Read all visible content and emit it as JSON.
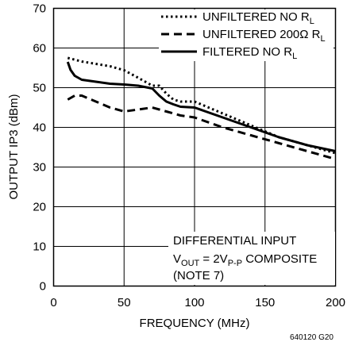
{
  "chart_data": {
    "type": "line",
    "xlabel": "FREQUENCY (MHz)",
    "ylabel": "OUTPUT IP3 (dBm)",
    "xlim": [
      0,
      200
    ],
    "ylim": [
      0,
      70
    ],
    "xticks": [
      "0",
      "50",
      "100",
      "150",
      "200"
    ],
    "yticks": [
      "0",
      "10",
      "20",
      "30",
      "40",
      "50",
      "60",
      "70"
    ],
    "grid": true,
    "legend_position": "top-right",
    "series": [
      {
        "name": "UNFILTERED NO RL",
        "style": "dotted",
        "x": [
          10,
          20,
          30,
          40,
          50,
          60,
          70,
          75,
          80,
          85,
          90,
          100,
          120,
          140,
          160,
          180,
          200
        ],
        "y": [
          57.5,
          56.6,
          56,
          55.4,
          54.4,
          52.5,
          50.5,
          50.5,
          48.5,
          47,
          46.5,
          46.5,
          43.5,
          40.5,
          37.5,
          35.5,
          33.5
        ]
      },
      {
        "name": "UNFILTERED 200Ω RL",
        "style": "dashed",
        "x": [
          10,
          15,
          20,
          30,
          40,
          50,
          60,
          70,
          80,
          90,
          100,
          120,
          140,
          160,
          180,
          200
        ],
        "y": [
          47,
          48,
          48,
          46.5,
          45,
          44,
          44.5,
          45,
          44,
          43,
          42.5,
          40,
          38,
          36,
          34,
          32
        ]
      },
      {
        "name": "FILTERED NO RL",
        "style": "solid",
        "x": [
          10,
          12,
          15,
          20,
          30,
          40,
          50,
          60,
          70,
          75,
          80,
          85,
          90,
          100,
          120,
          140,
          160,
          180,
          200
        ],
        "y": [
          56.5,
          54.5,
          53,
          52,
          51.5,
          51,
          50.8,
          50.5,
          49.8,
          48,
          46.5,
          45.8,
          45.2,
          45,
          42.5,
          40,
          37.5,
          35.5,
          34
        ]
      }
    ],
    "annotations": [
      "DIFFERENTIAL INPUT",
      "VOUT = 2VP-P COMPOSITE",
      "(NOTE 7)"
    ],
    "figure_code": "640120 G20"
  },
  "legend": {
    "l1": {
      "main": "UNFILTERED NO R",
      "sub": "L"
    },
    "l2": {
      "main": "UNFILTERED 200Ω R",
      "sub": "L"
    },
    "l3": {
      "main": "FILTERED NO R",
      "sub": "L"
    }
  },
  "note": {
    "line1": "DIFFERENTIAL INPUT",
    "v": "V",
    "out_sub": "OUT",
    "eq": " = 2V",
    "pp_sub": "P-P",
    "composite": " COMPOSITE",
    "line3": "(NOTE 7)"
  }
}
